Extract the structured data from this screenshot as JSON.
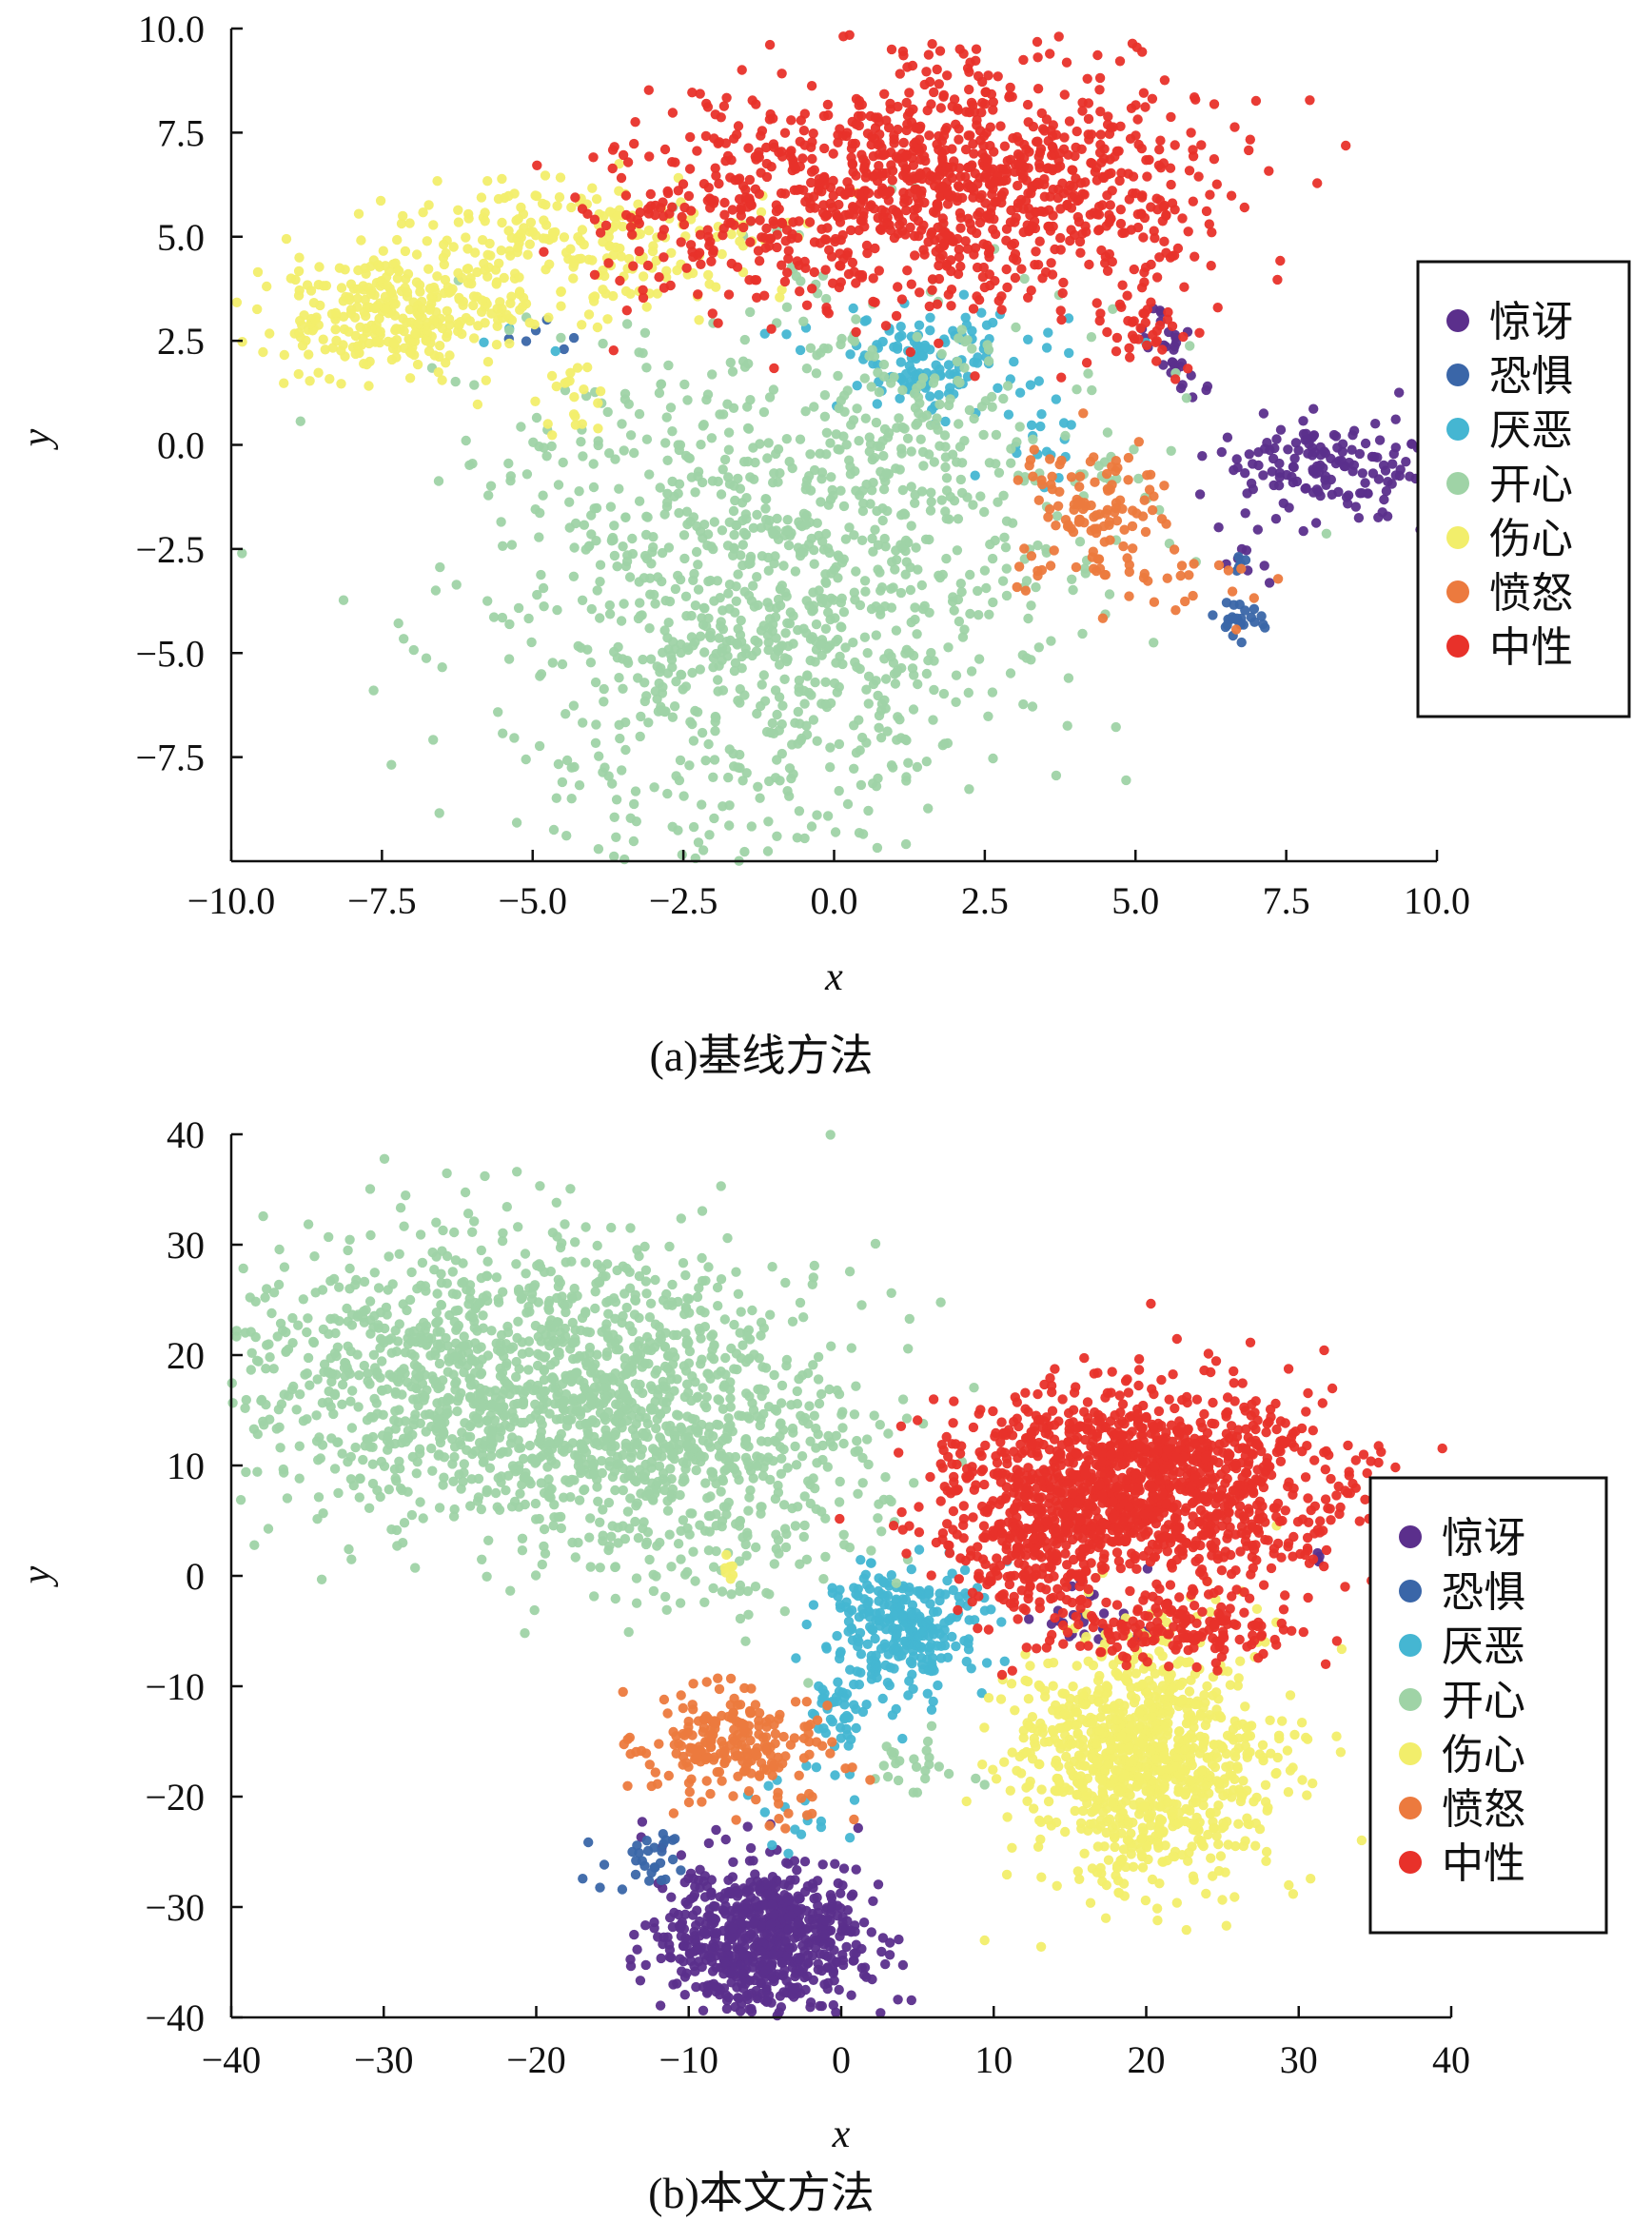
{
  "colors": {
    "surprise": "#5b2f8c",
    "fear": "#3a66a8",
    "disgust": "#45b6d2",
    "happy": "#9fd3a6",
    "sad": "#f2ee6b",
    "angry": "#ec7a3e",
    "neutral": "#e8312a"
  },
  "chart_data": [
    {
      "type": "scatter",
      "caption": "(a)基线方法",
      "xlabel": "x",
      "ylabel": "y",
      "xlim": [
        -10,
        10
      ],
      "ylim": [
        -10,
        10
      ],
      "xticks": [
        -10,
        -7.5,
        -5,
        -2.5,
        0,
        2.5,
        5,
        7.5,
        10
      ],
      "xtick_labels": [
        "−10.0",
        "−7.5",
        "−5.0",
        "−2.5",
        "0.0",
        "2.5",
        "5.0",
        "7.5",
        "10.0"
      ],
      "yticks": [
        10,
        7.5,
        5,
        2.5,
        0,
        -2.5,
        -5,
        -7.5
      ],
      "ytick_labels": [
        "10.0",
        "7.5",
        "5.0",
        "2.5",
        "0.0",
        "−2.5",
        "−5.0",
        "−7.5"
      ],
      "legend_position": "right",
      "series": [
        {
          "name": "惊讶",
          "color_key": "surprise",
          "clusters": [
            {
              "cx": 8.2,
              "cy": -0.5,
              "sx": 1.0,
              "sy": 0.6,
              "n": 160
            },
            {
              "cx": 5.6,
              "cy": 2.2,
              "sx": 0.3,
              "sy": 0.5,
              "n": 30
            },
            {
              "cx": 6.8,
              "cy": -2.8,
              "sx": 0.2,
              "sy": 0.3,
              "n": 8
            }
          ]
        },
        {
          "name": "恐惧",
          "color_key": "fear",
          "clusters": [
            {
              "cx": 6.7,
              "cy": -4.2,
              "sx": 0.2,
              "sy": 0.2,
              "n": 25
            },
            {
              "cx": -4.8,
              "cy": 2.5,
              "sx": 0.4,
              "sy": 0.3,
              "n": 6
            },
            {
              "cx": 6.8,
              "cy": -2.9,
              "sx": 0.1,
              "sy": 0.1,
              "n": 5
            }
          ]
        },
        {
          "name": "厌恶",
          "color_key": "disgust",
          "clusters": [
            {
              "cx": 1.6,
              "cy": 2.0,
              "sx": 0.6,
              "sy": 0.6,
              "n": 120
            },
            {
              "cx": 0.5,
              "cy": 2.6,
              "sx": 2.4,
              "sy": 0.4,
              "n": 25
            },
            {
              "cx": 3.2,
              "cy": 0.2,
              "sx": 0.5,
              "sy": 0.6,
              "n": 20
            }
          ]
        },
        {
          "name": "开心",
          "color_key": "happy",
          "clusters": [
            {
              "cx": -1.4,
              "cy": -3.6,
              "sx": 2.2,
              "sy": 3.4,
              "n": 1000
            },
            {
              "cx": 1.0,
              "cy": -1.5,
              "sx": 1.2,
              "sy": 2.5,
              "n": 200
            },
            {
              "cx": 3.8,
              "cy": -0.5,
              "sx": 1.2,
              "sy": 2.0,
              "n": 60
            }
          ]
        },
        {
          "name": "伤心",
          "color_key": "sad",
          "clusters": [
            {
              "cx": -7.2,
              "cy": 3.2,
              "sx": 1.0,
              "sy": 0.8,
              "n": 320
            },
            {
              "cx": -4.2,
              "cy": 4.8,
              "sx": 1.4,
              "sy": 0.8,
              "n": 230
            },
            {
              "cx": -4.4,
              "cy": 1.2,
              "sx": 0.3,
              "sy": 0.6,
              "n": 20
            }
          ]
        },
        {
          "name": "愤怒",
          "color_key": "angry",
          "clusters": [
            {
              "cx": 4.3,
              "cy": -1.8,
              "sx": 0.6,
              "sy": 0.8,
              "n": 120
            },
            {
              "cx": 5.8,
              "cy": -3.3,
              "sx": 0.6,
              "sy": 0.5,
              "n": 20
            }
          ]
        },
        {
          "name": "中性",
          "color_key": "neutral",
          "clusters": [
            {
              "cx": 2.0,
              "cy": 6.2,
              "sx": 2.1,
              "sy": 1.4,
              "n": 1000
            },
            {
              "cx": -1.8,
              "cy": 5.5,
              "sx": 1.2,
              "sy": 1.0,
              "n": 150
            },
            {
              "cx": 5.2,
              "cy": 3.0,
              "sx": 0.4,
              "sy": 0.7,
              "n": 40
            }
          ]
        }
      ]
    },
    {
      "type": "scatter",
      "caption": "(b)本文方法",
      "xlabel": "x",
      "ylabel": "y",
      "xlim": [
        -40,
        40
      ],
      "ylim": [
        -40,
        40
      ],
      "xticks": [
        -40,
        -30,
        -20,
        -10,
        0,
        10,
        20,
        30,
        40
      ],
      "xtick_labels": [
        "−40",
        "−30",
        "−20",
        "−10",
        "0",
        "10",
        "20",
        "30",
        "40"
      ],
      "yticks": [
        40,
        30,
        20,
        10,
        0,
        -10,
        -20,
        -30,
        -40
      ],
      "ytick_labels": [
        "40",
        "30",
        "20",
        "10",
        "0",
        "−10",
        "−20",
        "−30",
        "−40"
      ],
      "legend_position": "right",
      "series": [
        {
          "name": "惊讶",
          "color_key": "surprise",
          "clusters": [
            {
              "cx": -5.0,
              "cy": -33.0,
              "sx": 3.5,
              "sy": 3.5,
              "n": 700
            },
            {
              "cx": 16.0,
              "cy": -3.5,
              "sx": 2.5,
              "sy": 1.5,
              "n": 25
            },
            {
              "cx": 31.5,
              "cy": 1.5,
              "sx": 0.3,
              "sy": 0.5,
              "n": 4
            }
          ]
        },
        {
          "name": "恐惧",
          "color_key": "fear",
          "clusters": [
            {
              "cx": -13.0,
              "cy": -25.5,
              "sx": 1.5,
              "sy": 1.2,
              "n": 30
            }
          ]
        },
        {
          "name": "厌恶",
          "color_key": "disgust",
          "clusters": [
            {
              "cx": 4.0,
              "cy": -5.0,
              "sx": 2.5,
              "sy": 3.0,
              "n": 280
            },
            {
              "cx": 0.0,
              "cy": -12.0,
              "sx": 1.2,
              "sy": 1.5,
              "n": 40
            },
            {
              "cx": -2.0,
              "cy": -22.0,
              "sx": 1.5,
              "sy": 3.0,
              "n": 20
            }
          ]
        },
        {
          "name": "开心",
          "color_key": "happy",
          "clusters": [
            {
              "cx": -22.0,
              "cy": 18.0,
              "sx": 9.0,
              "sy": 6.5,
              "n": 1300
            },
            {
              "cx": -10.0,
              "cy": 10.0,
              "sx": 6.0,
              "sy": 6.0,
              "n": 500
            },
            {
              "cx": 5.0,
              "cy": -17.0,
              "sx": 2.0,
              "sy": 1.0,
              "n": 25
            }
          ]
        },
        {
          "name": "伤心",
          "color_key": "sad",
          "clusters": [
            {
              "cx": 20.0,
              "cy": -16.5,
              "sx": 4.0,
              "sy": 5.5,
              "n": 1000
            },
            {
              "cx": -7.5,
              "cy": 0.5,
              "sx": 0.4,
              "sy": 0.6,
              "n": 8
            }
          ]
        },
        {
          "name": "愤怒",
          "color_key": "angry",
          "clusters": [
            {
              "cx": -7.0,
              "cy": -15.0,
              "sx": 3.0,
              "sy": 2.5,
              "n": 220
            },
            {
              "cx": -5.0,
              "cy": -21.5,
              "sx": 3.0,
              "sy": 1.0,
              "n": 15
            }
          ]
        },
        {
          "name": "中性",
          "color_key": "neutral",
          "clusters": [
            {
              "cx": 20.0,
              "cy": 8.0,
              "sx": 6.5,
              "sy": 4.5,
              "n": 1300
            },
            {
              "cx": 13.0,
              "cy": 2.0,
              "sx": 3.0,
              "sy": 4.0,
              "n": 200
            },
            {
              "cx": 22.0,
              "cy": -5.0,
              "sx": 3.5,
              "sy": 1.5,
              "n": 150
            }
          ]
        }
      ]
    }
  ]
}
